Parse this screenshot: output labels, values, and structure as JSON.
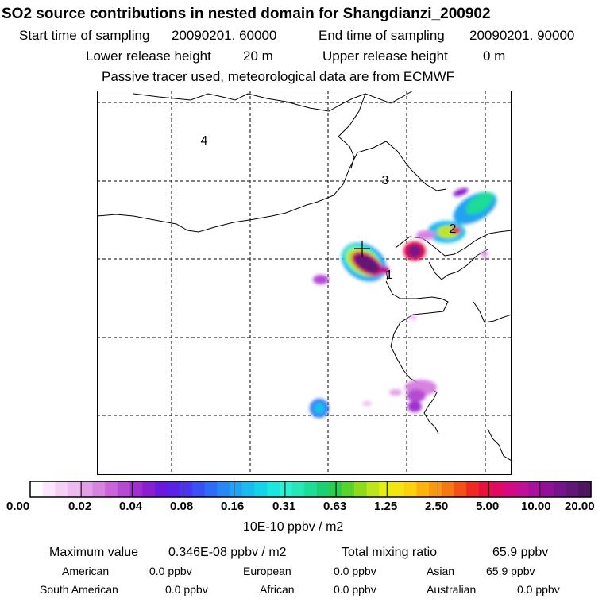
{
  "header": {
    "title": "SO2 source contributions in nested domain for Shangdianzi_200902",
    "start_label": "Start time of sampling",
    "start_value": "20090201. 60000",
    "end_label": "End time of sampling",
    "end_value": "20090201. 90000",
    "lower_label": "Lower release height",
    "lower_value": "20 m",
    "upper_label": "Upper release height",
    "upper_value": "0 m",
    "tracer_note": "Passive tracer used, meteorological data are from ECMWF"
  },
  "chart_data": {
    "type": "heatmap",
    "title": "SO2 source contributions in nested domain for Shangdianzi_200902",
    "region_labels": [
      "1",
      "2",
      "3",
      "4"
    ],
    "colorbar": {
      "ticks": [
        "0.00",
        "0.02",
        "0.04",
        "0.08",
        "0.16",
        "0.31",
        "0.63",
        "1.25",
        "2.50",
        "5.00",
        "10.00",
        "20.00"
      ],
      "unit_label": "10E-10 ppbv / m2",
      "colors": [
        "#ffffff",
        "#fbe6fb",
        "#f5d0f5",
        "#eebbef",
        "#e29ee6",
        "#d783e0",
        "#c865d8",
        "#b64ad2",
        "#9f30cf",
        "#8a1fd0",
        "#6a1ad8",
        "#5a22e6",
        "#4a36f0",
        "#3a50f5",
        "#2e6cf7",
        "#2a88f5",
        "#22a2f2",
        "#1cbbee",
        "#16d3ea",
        "#1ae6e2",
        "#2ef0d0",
        "#26e8b6",
        "#1fdc96",
        "#1ccf72",
        "#2ccc4e",
        "#5ad22c",
        "#8ddb1c",
        "#bde61a",
        "#e4ee14",
        "#f6e412",
        "#fcd20e",
        "#fbb40e",
        "#f8980e",
        "#f57812",
        "#f25216",
        "#ee2a22",
        "#e8103e",
        "#e00a62",
        "#d40a82",
        "#c10f96",
        "#a8119c",
        "#8f1296",
        "#78148a",
        "#621676",
        "#4e1660"
      ]
    },
    "stats": {
      "max_label": "Maximum value",
      "max_value": "0.346E-08 ppbv / m2",
      "total_label": "Total mixing ratio",
      "total_value": "65.9 ppbv"
    },
    "regions": [
      {
        "name": "American",
        "value": "0.0 ppbv"
      },
      {
        "name": "European",
        "value": "0.0 ppbv"
      },
      {
        "name": "Asian",
        "value": "65.9 ppbv"
      },
      {
        "name": "South American",
        "value": "0.0 ppbv"
      },
      {
        "name": "African",
        "value": "0.0 ppbv"
      },
      {
        "name": "Australian",
        "value": "0.0 ppbv"
      }
    ]
  }
}
